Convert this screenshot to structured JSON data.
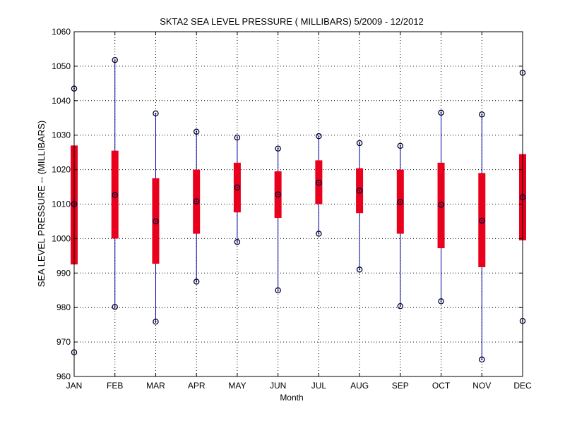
{
  "chart_data": {
    "type": "box",
    "title": "SKTA2  SEA LEVEL PRESSURE ( MILLIBARS) 5/2009 - 12/2012",
    "xlabel": "Month",
    "ylabel": "SEA LEVEL PRESSURE -- (MILLIBARS)",
    "ylim": [
      960,
      1060
    ],
    "yticks": [
      960,
      970,
      980,
      990,
      1000,
      1010,
      1020,
      1030,
      1040,
      1050,
      1060
    ],
    "grid": true,
    "categories": [
      "JAN",
      "FEB",
      "MAR",
      "APR",
      "MAY",
      "JUN",
      "JUL",
      "AUG",
      "SEP",
      "OCT",
      "NOV",
      "DEC"
    ],
    "series": [
      {
        "min": [
          967.0,
          980.2,
          975.9,
          987.5,
          999.0,
          985.0,
          1001.4,
          991.0,
          980.4,
          981.8,
          964.9,
          976.1
        ],
        "q1": [
          992.5,
          1000.0,
          992.7,
          1001.4,
          1007.6,
          1006.0,
          1010.0,
          1007.4,
          1001.4,
          997.2,
          991.7,
          999.5
        ],
        "median": [
          1010.0,
          1012.6,
          1005.0,
          1010.8,
          1014.8,
          1012.8,
          1016.2,
          1013.9,
          1010.6,
          1009.8,
          1005.2,
          1012.0
        ],
        "q3": [
          1027.0,
          1025.5,
          1017.5,
          1020.0,
          1022.0,
          1019.5,
          1022.7,
          1020.4,
          1020.0,
          1022.0,
          1019.0,
          1024.5
        ],
        "max": [
          1043.5,
          1051.8,
          1036.3,
          1031.0,
          1029.3,
          1026.1,
          1029.7,
          1027.7,
          1026.9,
          1036.5,
          1036.0,
          1048.1
        ]
      }
    ],
    "colors": {
      "whisker": "#0000a8",
      "box": "#e8001c",
      "marker": "#000033",
      "grid": "#000000",
      "axis": "#000000"
    }
  }
}
